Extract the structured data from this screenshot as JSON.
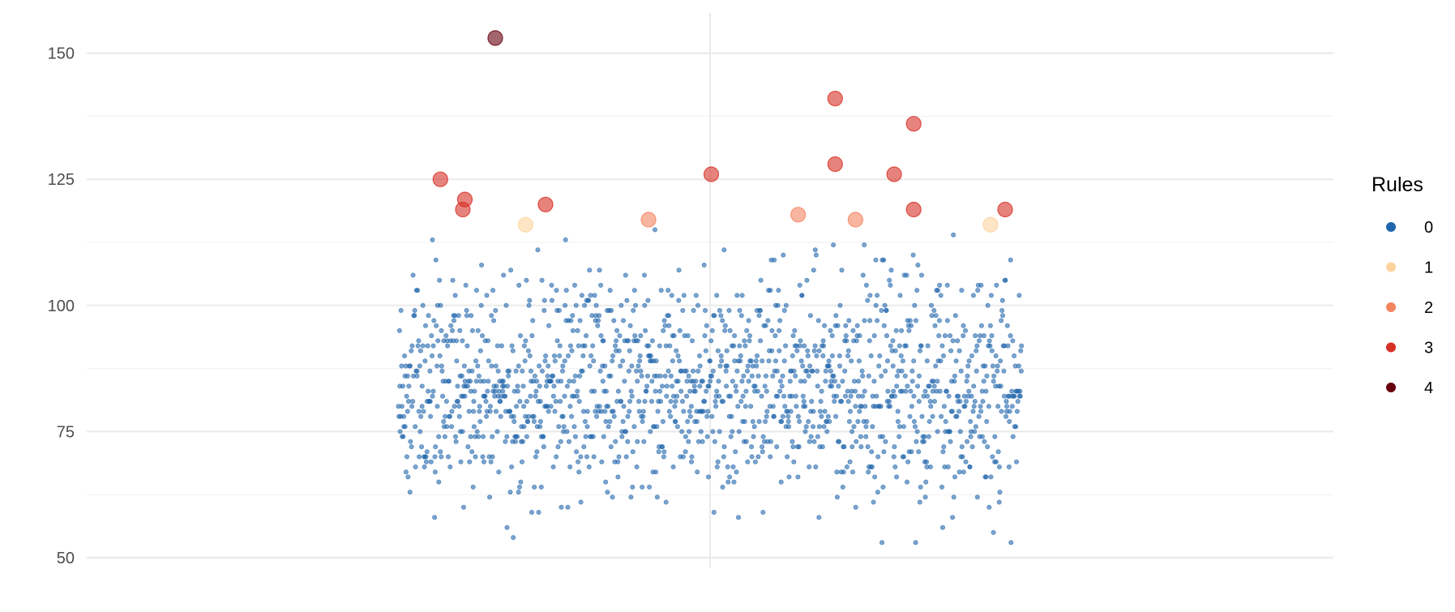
{
  "chart_data": {
    "type": "scatter",
    "ylim": [
      48,
      158
    ],
    "y_ticks": [
      50,
      75,
      100,
      125,
      150
    ],
    "y_tick_labels": [
      "50",
      "75",
      "100",
      "125",
      "150"
    ],
    "grid": true,
    "legend": {
      "title": "Rules",
      "placement": "right",
      "entries": [
        {
          "label": "0",
          "color": "#2166ac"
        },
        {
          "label": "1",
          "color": "#fdd49e"
        },
        {
          "label": "2",
          "color": "#f4845f"
        },
        {
          "label": "3",
          "color": "#d73027"
        },
        {
          "label": "4",
          "color": "#67000d"
        }
      ]
    },
    "background_points": {
      "rule": "0",
      "count": 1500,
      "x_range": [
        0,
        1500
      ],
      "mean": 84,
      "sd": 11,
      "min": 53,
      "max": 115,
      "note_dist": "approx normal"
    },
    "highlighted_points": [
      {
        "x": 233,
        "y": 153,
        "rule": "4"
      },
      {
        "x": 101,
        "y": 125,
        "rule": "3"
      },
      {
        "x": 160,
        "y": 121,
        "rule": "3"
      },
      {
        "x": 155,
        "y": 119,
        "rule": "3"
      },
      {
        "x": 354,
        "y": 120,
        "rule": "3"
      },
      {
        "x": 753,
        "y": 126,
        "rule": "3"
      },
      {
        "x": 1051,
        "y": 141,
        "rule": "3"
      },
      {
        "x": 1051,
        "y": 128,
        "rule": "3"
      },
      {
        "x": 1193,
        "y": 126,
        "rule": "3"
      },
      {
        "x": 1240,
        "y": 136,
        "rule": "3"
      },
      {
        "x": 1240,
        "y": 119,
        "rule": "3"
      },
      {
        "x": 1460,
        "y": 119,
        "rule": "3"
      },
      {
        "x": 306,
        "y": 116,
        "rule": "1"
      },
      {
        "x": 1425,
        "y": 116,
        "rule": "1"
      },
      {
        "x": 602,
        "y": 117,
        "rule": "2"
      },
      {
        "x": 962,
        "y": 118,
        "rule": "2"
      },
      {
        "x": 1100,
        "y": 117,
        "rule": "2"
      }
    ],
    "x_axis": {
      "range": [
        -750,
        2250
      ],
      "vertical_reference_x": 750
    }
  }
}
